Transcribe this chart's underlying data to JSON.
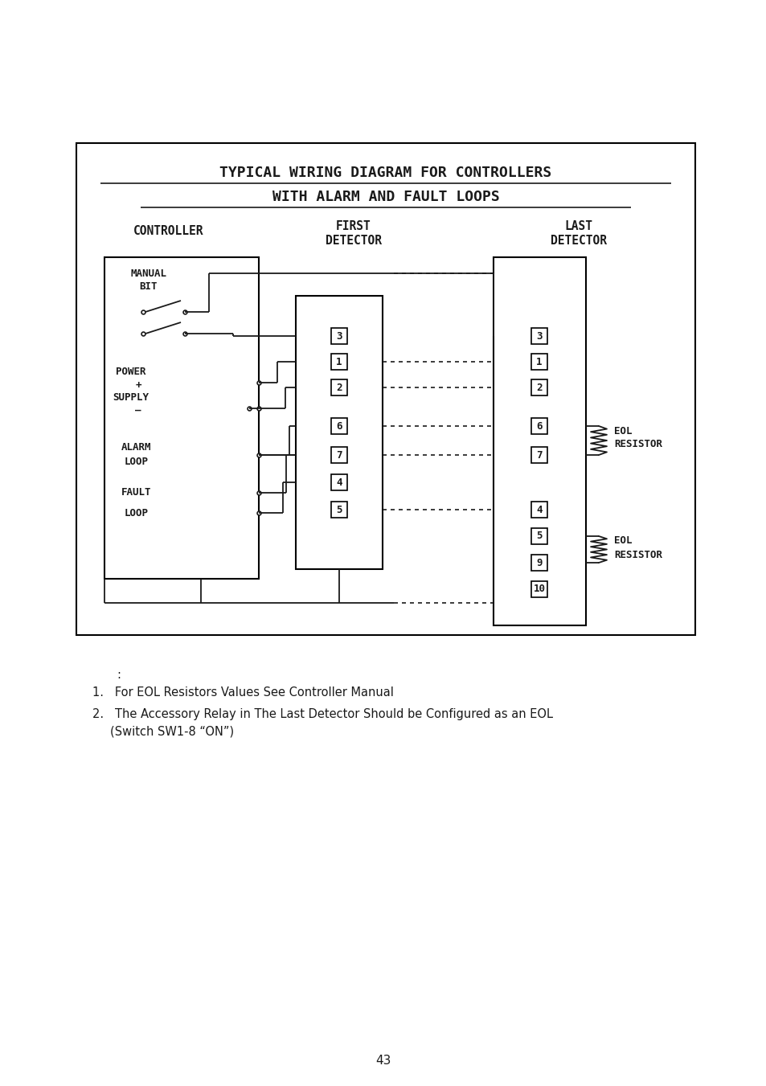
{
  "title_line1": "TYPICAL WIRING DIAGRAM FOR CONTROLLERS",
  "title_line2": "WITH ALARM AND FAULT LOOPS",
  "note1": "For EOL Resistors Values See Controller Manual",
  "note2a": "The Accessory Relay in The Last Detector Should be Configured as an EOL",
  "note2b": "(Switch SW1-8 “ON”)",
  "page_number": "43",
  "bg_color": "#ffffff",
  "line_color": "#1a1a1a"
}
